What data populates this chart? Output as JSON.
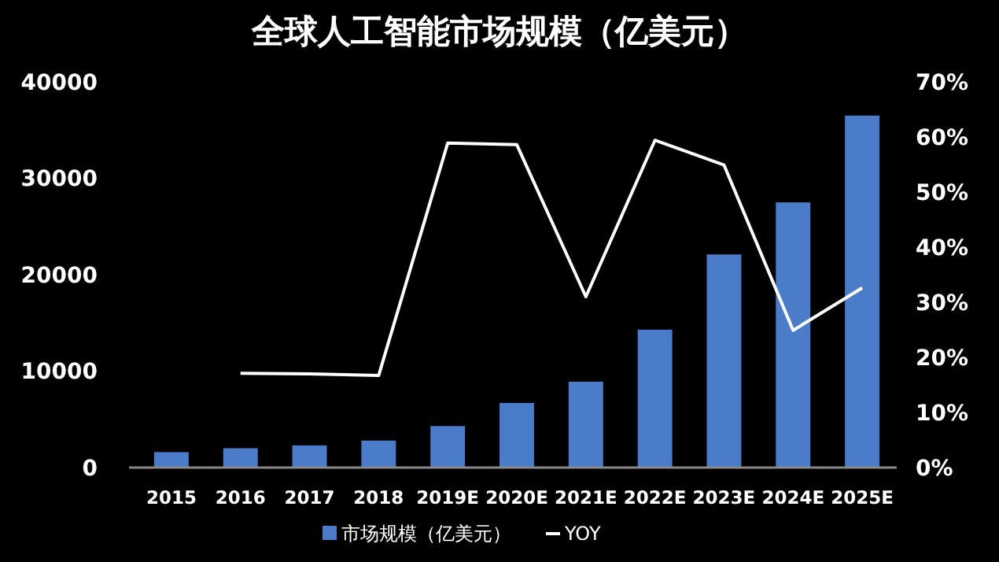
{
  "chart_data": {
    "type": "bar",
    "title": "全球人工智能市场规模（亿美元）",
    "categories": [
      "2015",
      "2016",
      "2017",
      "2018",
      "2019E",
      "2020E",
      "2021E",
      "2022E",
      "2023E",
      "2024E",
      "2025E"
    ],
    "series": [
      {
        "name": "市场规模（亿美元）",
        "color": "#4a7cc9",
        "values": [
          1600,
          2000,
          2300,
          2800,
          4300,
          6700,
          8900,
          14300,
          22100,
          27500,
          36500
        ]
      },
      {
        "name": "YOY",
        "type": "line",
        "axis": "y2",
        "color": "#ffffff",
        "values": [
          null,
          17.1,
          17,
          16.7,
          58.9,
          58.6,
          31,
          59.4,
          54.9,
          24.9,
          32.6
        ]
      }
    ],
    "ylim": [
      0,
      40000
    ],
    "yticks": [
      0,
      10000,
      20000,
      30000,
      40000
    ],
    "y2lim": [
      0,
      70
    ],
    "y2ticks": [
      {
        "value": 0,
        "label": "0%"
      },
      {
        "value": 10,
        "label": "10%"
      },
      {
        "value": 20,
        "label": "20%"
      },
      {
        "value": 30,
        "label": "30%"
      },
      {
        "value": 40,
        "label": "40%"
      },
      {
        "value": 50,
        "label": "50%"
      },
      {
        "value": 60,
        "label": "60%"
      },
      {
        "value": 70,
        "label": "70%"
      }
    ],
    "grid": false,
    "legend": "bottom",
    "marker": "none",
    "line_style": "solid"
  }
}
